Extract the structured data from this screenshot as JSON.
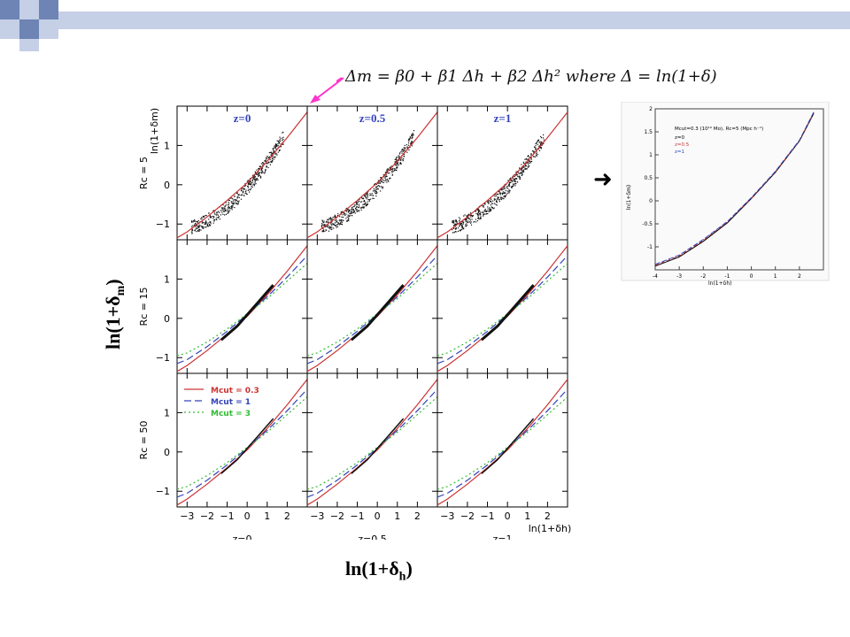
{
  "slide": {
    "big_xlabel_main": "ln(1+δ",
    "big_xlabel_sub": "h",
    "big_xlabel_close": ")",
    "big_ylabel_main": "ln(1+δ",
    "big_ylabel_sub": "m",
    "big_ylabel_close": ")",
    "arrow": "➜",
    "equation": "Δm = β0 + β1 Δh + β2 Δh² where Δ = ln(1+δ)",
    "colors": {
      "deco_blue": "#6d84b4",
      "deco_light": "#c5cfe6",
      "red": "#cc3333",
      "blue": "#3344bb",
      "green": "#33bb33",
      "pink": "#ff33cc"
    }
  },
  "chart_data": [
    {
      "type": "scatter",
      "layout": "3x3 grid",
      "columns": [
        {
          "title": "z=0",
          "xlabel": "z=0"
        },
        {
          "title": "z=0.5",
          "xlabel": "z=0.5"
        },
        {
          "title": "z=1",
          "xlabel": "z=1",
          "xaxis_label": "ln(1+δh)"
        }
      ],
      "rows": [
        {
          "label": "Rc = 5",
          "yaxis_label": "ln(1+δm)"
        },
        {
          "label": "Rc = 15"
        },
        {
          "label": "Rc = 50"
        }
      ],
      "xlim": [
        -3.5,
        3
      ],
      "ylim": [
        -1.4,
        2
      ],
      "xticks": [
        -3,
        -2,
        -1,
        0,
        1,
        2
      ],
      "yticks": [
        -1,
        0,
        1
      ],
      "legend": {
        "placement": "top-left of bottom-left panel",
        "entries": [
          {
            "label": "Mcut = 0.3",
            "color": "#cc3333",
            "style": "solid"
          },
          {
            "label": "Mcut = 1",
            "color": "#3344bb",
            "style": "dashed"
          },
          {
            "label": "Mcut = 3",
            "color": "#33bb33",
            "style": "dotted"
          }
        ]
      },
      "series": [
        {
          "label": "Mcut = 0.3",
          "x": [
            -3.5,
            -3,
            -2,
            -1,
            0,
            1,
            2,
            3
          ],
          "y": [
            -1.35,
            -1.2,
            -0.82,
            -0.4,
            0.05,
            0.6,
            1.2,
            1.85
          ]
        },
        {
          "label": "Mcut = 1",
          "x": [
            -3.5,
            -3,
            -2,
            -1,
            0,
            1,
            2,
            3
          ],
          "y": [
            -1.15,
            -1.05,
            -0.72,
            -0.33,
            0.1,
            0.55,
            1.05,
            1.6
          ]
        },
        {
          "label": "Mcut = 3",
          "x": [
            -3.5,
            -3,
            -2,
            -1,
            0,
            1,
            2,
            3
          ],
          "y": [
            -0.95,
            -0.88,
            -0.6,
            -0.27,
            0.12,
            0.5,
            0.95,
            1.4
          ]
        }
      ]
    },
    {
      "type": "line",
      "title": "Mcut=0.3 (10¹⁰ Mo), Rc=5 (Mpc h⁻¹)",
      "xlabel": "ln(1+δh)",
      "ylabel": "ln(1+δm)",
      "xlim": [
        -4,
        3
      ],
      "ylim": [
        -1.5,
        2
      ],
      "xticks": [
        -4,
        -3,
        -2,
        -1,
        0,
        1,
        2
      ],
      "yticks": [
        -1,
        -0.5,
        0,
        0.5,
        1,
        1.5,
        2
      ],
      "legend": [
        {
          "label": "z=0",
          "color": "#000000"
        },
        {
          "label": "z=0.5",
          "color": "#cc3333"
        },
        {
          "label": "z=1",
          "color": "#3344bb"
        }
      ],
      "series": [
        {
          "label": "z=0",
          "x": [
            -4,
            -3,
            -2,
            -1,
            0,
            1,
            2,
            2.6
          ],
          "y": [
            -1.42,
            -1.22,
            -0.88,
            -0.48,
            0.05,
            0.62,
            1.3,
            1.9
          ]
        },
        {
          "label": "z=0.5",
          "x": [
            -4,
            -3,
            -2,
            -1,
            0,
            1,
            2,
            2.6
          ],
          "y": [
            -1.4,
            -1.2,
            -0.86,
            -0.46,
            0.06,
            0.63,
            1.31,
            1.92
          ]
        },
        {
          "label": "z=1",
          "x": [
            -4,
            -3,
            -2,
            -1,
            0,
            1,
            2,
            2.6
          ],
          "y": [
            -1.38,
            -1.18,
            -0.84,
            -0.45,
            0.07,
            0.64,
            1.32,
            1.93
          ]
        }
      ]
    }
  ]
}
